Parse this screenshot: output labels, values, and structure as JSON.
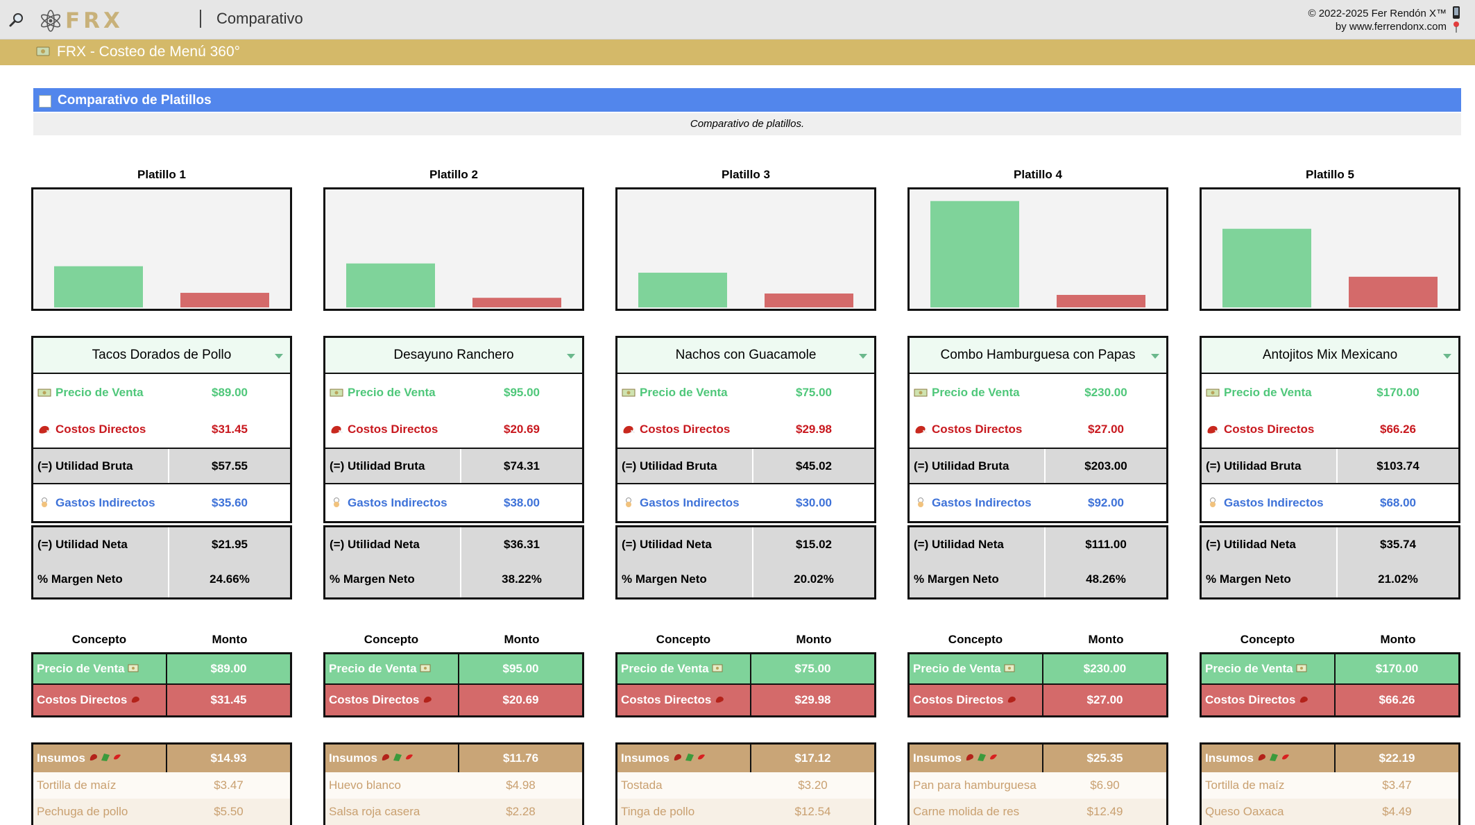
{
  "app": {
    "logo_text": "FRX",
    "page_title": "Comparativo",
    "copyright_line1": "© 2022-2025 Fer Rendón X™",
    "copyright_line2": "by www.ferrendonx.com",
    "banner_title": "FRX - Costeo de Menú 360°"
  },
  "section": {
    "title": "Comparativo de Platillos",
    "subtitle": "Comparativo de platillos."
  },
  "labels": {
    "precio": "Precio de Venta",
    "costos": "Costos Directos",
    "utilidad_bruta": "(=) Utilidad Bruta",
    "gastos": "Gastos Indirectos",
    "utilidad_neta": "(=) Utilidad Neta",
    "margen": "% Margen Neto",
    "concepto": "Concepto",
    "monto": "Monto",
    "insumos": "Insumos"
  },
  "colors": {
    "green": "#7fd39a",
    "red": "#d46a6a",
    "blue_header": "#5286ec",
    "gold": "#d4b969"
  },
  "chart_data": [
    {
      "type": "bar",
      "title": "Platillo 1",
      "categories": [
        "Precio de Venta",
        "Costos Directos"
      ],
      "values": [
        89.0,
        31.45
      ]
    },
    {
      "type": "bar",
      "title": "Platillo 2",
      "categories": [
        "Precio de Venta",
        "Costos Directos"
      ],
      "values": [
        95.0,
        20.69
      ]
    },
    {
      "type": "bar",
      "title": "Platillo 3",
      "categories": [
        "Precio de Venta",
        "Costos Directos"
      ],
      "values": [
        75.0,
        29.98
      ]
    },
    {
      "type": "bar",
      "title": "Platillo 4",
      "categories": [
        "Precio de Venta",
        "Costos Directos"
      ],
      "values": [
        230.0,
        27.0
      ]
    },
    {
      "type": "bar",
      "title": "Platillo 5",
      "categories": [
        "Precio de Venta",
        "Costos Directos"
      ],
      "values": [
        170.0,
        66.26
      ]
    }
  ],
  "platillos": [
    {
      "title": "Platillo 1",
      "name": "Tacos Dorados de Pollo",
      "precio": "$89.00",
      "costos": "$31.45",
      "utilidad_bruta": "$57.55",
      "gastos": "$35.60",
      "utilidad_neta": "$21.95",
      "margen": "24.66%",
      "insumos_total": "$14.93",
      "insumos": [
        {
          "name": "Tortilla de maíz",
          "value": "$3.47"
        },
        {
          "name": "Pechuga de pollo",
          "value": "$5.50"
        }
      ]
    },
    {
      "title": "Platillo 2",
      "name": "Desayuno Ranchero",
      "precio": "$95.00",
      "costos": "$20.69",
      "utilidad_bruta": "$74.31",
      "gastos": "$38.00",
      "utilidad_neta": "$36.31",
      "margen": "38.22%",
      "insumos_total": "$11.76",
      "insumos": [
        {
          "name": "Huevo blanco",
          "value": "$4.98"
        },
        {
          "name": "Salsa roja casera",
          "value": "$2.28"
        }
      ]
    },
    {
      "title": "Platillo 3",
      "name": "Nachos con Guacamole",
      "precio": "$75.00",
      "costos": "$29.98",
      "utilidad_bruta": "$45.02",
      "gastos": "$30.00",
      "utilidad_neta": "$15.02",
      "margen": "20.02%",
      "insumos_total": "$17.12",
      "insumos": [
        {
          "name": "Tostada",
          "value": "$3.20"
        },
        {
          "name": "Tinga de pollo",
          "value": "$12.54"
        }
      ]
    },
    {
      "title": "Platillo 4",
      "name": "Combo Hamburguesa con Papas",
      "precio": "$230.00",
      "costos": "$27.00",
      "utilidad_bruta": "$203.00",
      "gastos": "$92.00",
      "utilidad_neta": "$111.00",
      "margen": "48.26%",
      "insumos_total": "$25.35",
      "insumos": [
        {
          "name": "Pan para hamburguesa",
          "value": "$6.90"
        },
        {
          "name": "Carne molida de res",
          "value": "$12.49"
        }
      ]
    },
    {
      "title": "Platillo 5",
      "name": "Antojitos Mix Mexicano",
      "precio": "$170.00",
      "costos": "$66.26",
      "utilidad_bruta": "$103.74",
      "gastos": "$68.00",
      "utilidad_neta": "$35.74",
      "margen": "21.02%",
      "insumos_total": "$22.19",
      "insumos": [
        {
          "name": "Tortilla de maíz",
          "value": "$3.47"
        },
        {
          "name": "Queso Oaxaca",
          "value": "$4.49"
        }
      ]
    }
  ]
}
